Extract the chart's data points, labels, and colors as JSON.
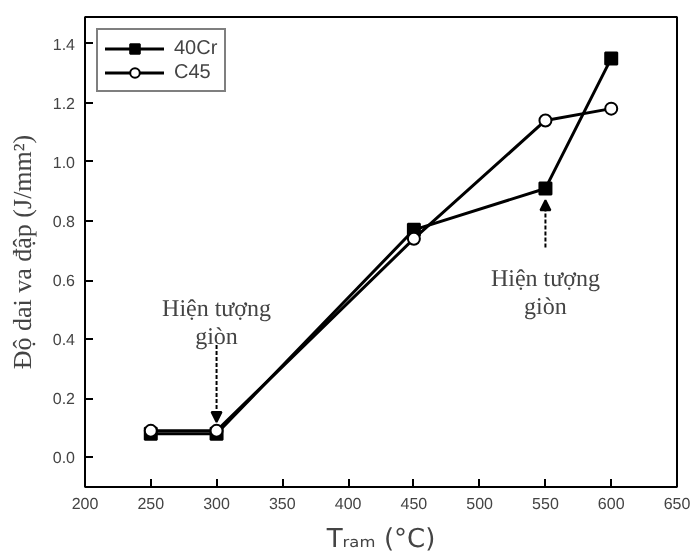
{
  "chart_data": {
    "type": "line",
    "xlabel": "Tᵣₐₘ (°C)",
    "ylabel": "Độ dai va đập (J/mm²)",
    "x": [
      250,
      300,
      450,
      550,
      600
    ],
    "series": [
      {
        "name": "40Cr",
        "color": "#000000",
        "marker": "square",
        "values": [
          0.08,
          0.08,
          0.77,
          0.91,
          1.35
        ]
      },
      {
        "name": "C45",
        "color": "#000000",
        "marker": "circle",
        "values": [
          0.09,
          0.09,
          0.74,
          1.14,
          1.18
        ]
      }
    ],
    "xlim": [
      200,
      650
    ],
    "xticks": [
      200,
      250,
      300,
      350,
      400,
      450,
      500,
      550,
      600,
      650
    ],
    "ylim": [
      -0.1,
      1.49
    ],
    "yticks": [
      {
        "value": 0,
        "label": "0.0"
      },
      0.2,
      0.4,
      0.6,
      0.8,
      {
        "value": 1,
        "label": "1.0"
      },
      1.2,
      1.4
    ],
    "annotations": [
      {
        "text": "Hiện tượng\ngiòn",
        "x": 300,
        "y": 0.08
      },
      {
        "text": "Hiện tượng\ngiòn",
        "x": 550,
        "y": 0.91
      }
    ],
    "grid": false,
    "legend": "top left"
  }
}
